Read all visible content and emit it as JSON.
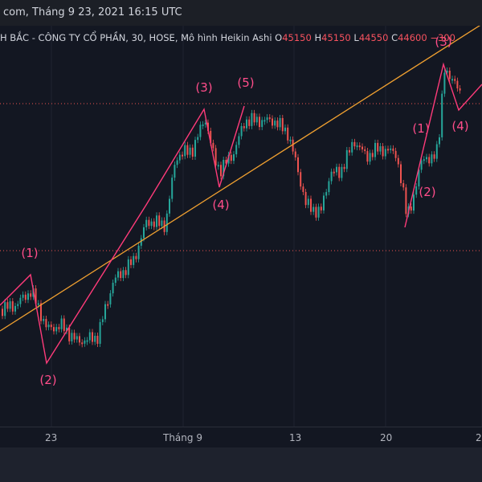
{
  "header": {
    "text": "com, Tháng 9 23, 2021 16:15 UTC"
  },
  "legend": {
    "title": "H BẮC - CÔNG TY CỔ PHẦN, 30, HOSE, Mô hình Heikin Ashi",
    "o_label": "O",
    "o_value": "45150",
    "h_label": "H",
    "h_value": "45150",
    "l_label": "L",
    "l_value": "44550",
    "c_label": "C",
    "c_value": "44600",
    "change": "−300"
  },
  "colors": {
    "up": "#26a69a",
    "down": "#ef5350",
    "wave": "#ff3b7a",
    "trend": "#f0a030",
    "label": "#ff4d8a"
  },
  "xaxis": {
    "ticks": [
      "23",
      "Tháng 9",
      "13",
      "20",
      "2"
    ]
  },
  "chart_data": {
    "type": "candlestick",
    "title": "H BẮC - CÔNG TY CỔ PHẦN, 30, HOSE, Mô hình Heikin Ashi",
    "ylim": [
      40000,
      46000
    ],
    "x_ticks": [
      "23",
      "Tháng 9",
      "13",
      "20",
      "2"
    ],
    "levels": [
      45300,
      42100
    ],
    "wave_labels": [
      "(1)",
      "(2)",
      "(3)",
      "(4)",
      "(5)",
      "(1)",
      "(2)",
      "(3)",
      "(4)"
    ],
    "trendline": [
      [
        0,
        41600
      ],
      [
        100,
        45800
      ]
    ]
  }
}
